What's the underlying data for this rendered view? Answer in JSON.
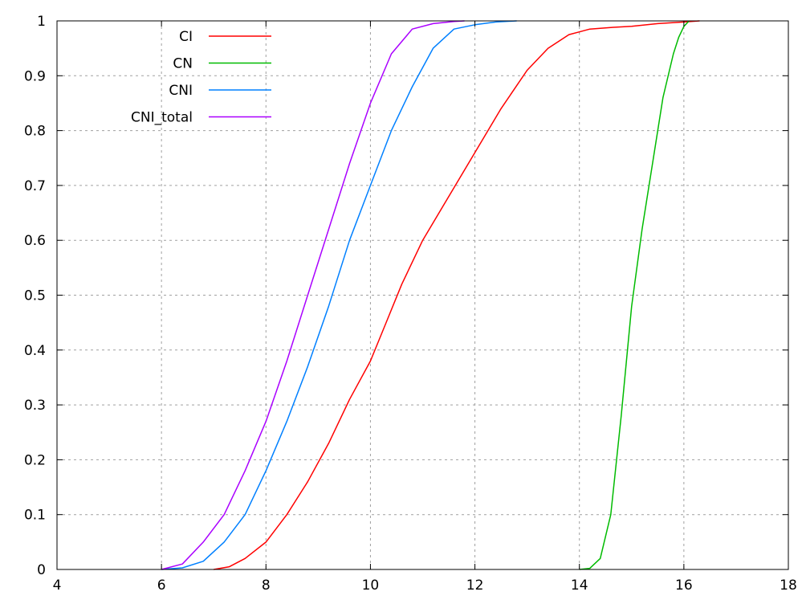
{
  "chart_data": {
    "type": "line",
    "title": "",
    "xlabel": "",
    "ylabel": "",
    "xlim": [
      4,
      18
    ],
    "ylim": [
      0,
      1
    ],
    "xticks": [
      "4",
      "6",
      "8",
      "10",
      "12",
      "14",
      "16",
      "18"
    ],
    "yticks": [
      "0",
      "0.1",
      "0.2",
      "0.3",
      "0.4",
      "0.5",
      "0.6",
      "0.7",
      "0.8",
      "0.9",
      "1"
    ],
    "grid": true,
    "legend": "top-left",
    "series": [
      {
        "name": "CI",
        "color": "#ff0000",
        "x": [
          7.0,
          7.3,
          7.6,
          8.0,
          8.4,
          8.8,
          9.2,
          9.6,
          10.0,
          10.3,
          10.6,
          11.0,
          11.5,
          12.0,
          12.5,
          13.0,
          13.4,
          13.8,
          14.0,
          14.2,
          14.6,
          15.0,
          15.5,
          16.0,
          16.3
        ],
        "y": [
          0,
          0.005,
          0.02,
          0.05,
          0.1,
          0.16,
          0.23,
          0.31,
          0.38,
          0.45,
          0.52,
          0.6,
          0.68,
          0.76,
          0.84,
          0.91,
          0.95,
          0.975,
          0.98,
          0.985,
          0.988,
          0.99,
          0.995,
          0.998,
          1
        ]
      },
      {
        "name": "CN",
        "color": "#00bb00",
        "x": [
          14.0,
          14.2,
          14.4,
          14.6,
          14.8,
          15.0,
          15.2,
          15.4,
          15.6,
          15.8,
          15.9,
          16.0,
          16.1
        ],
        "y": [
          0,
          0.002,
          0.02,
          0.1,
          0.28,
          0.48,
          0.62,
          0.74,
          0.86,
          0.94,
          0.97,
          0.99,
          1
        ]
      },
      {
        "name": "CNI",
        "color": "#0080ff",
        "x": [
          6.0,
          6.4,
          6.8,
          7.2,
          7.6,
          8.0,
          8.4,
          8.8,
          9.2,
          9.6,
          10.0,
          10.4,
          10.8,
          11.2,
          11.6,
          12.0,
          12.4,
          12.8
        ],
        "y": [
          0,
          0.003,
          0.015,
          0.05,
          0.1,
          0.18,
          0.27,
          0.37,
          0.48,
          0.6,
          0.7,
          0.8,
          0.88,
          0.95,
          0.985,
          0.993,
          0.998,
          1
        ]
      },
      {
        "name": "CNI_total",
        "color": "#aa00ff",
        "x": [
          6.0,
          6.4,
          6.8,
          7.2,
          7.6,
          8.0,
          8.4,
          8.8,
          9.2,
          9.6,
          10.0,
          10.4,
          10.8,
          11.2,
          11.6,
          11.8
        ],
        "y": [
          0,
          0.01,
          0.05,
          0.1,
          0.18,
          0.27,
          0.38,
          0.5,
          0.62,
          0.74,
          0.85,
          0.94,
          0.985,
          0.995,
          0.999,
          1
        ]
      }
    ]
  }
}
